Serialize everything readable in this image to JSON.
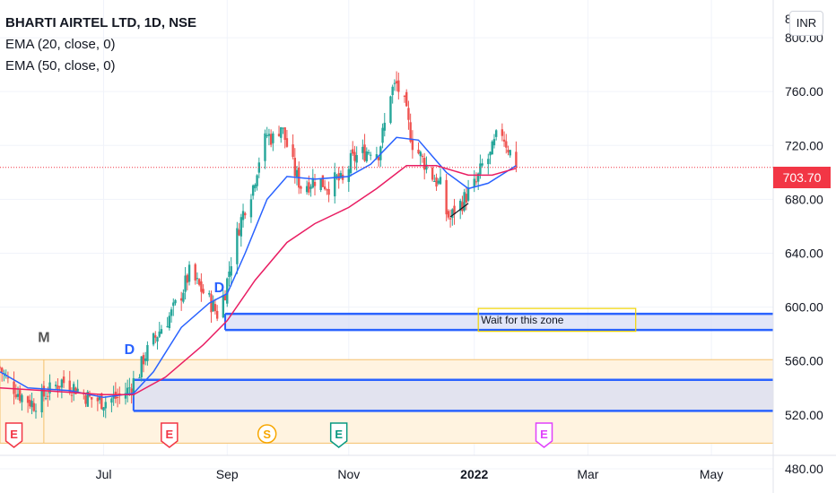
{
  "header": {
    "symbol_title": "BHARTI AIRTEL LTD, 1D, NSE",
    "indicator_1": "EMA (20, close, 0)",
    "indicator_2": "EMA (50, close, 0)",
    "currency_button": "INR"
  },
  "last_price_label": "703.70",
  "annotation_text": "Wait for this zone",
  "colors": {
    "up": "#26a69a",
    "down": "#ef5350",
    "ema20": "#2962ff",
    "ema50": "#e91e63",
    "zone_border": "#2962ff",
    "zone_fill": "#d6dcf5",
    "range_fill": "#fff3e0",
    "range_border": "#f5c16c",
    "callout_border": "#f2d500",
    "price_tag": "#f23645"
  },
  "markers": [
    {
      "label": "M",
      "color": "#555555"
    },
    {
      "label": "D",
      "color": "#2962ff"
    },
    {
      "label": "D",
      "color": "#2962ff"
    }
  ],
  "event_badges": [
    {
      "label": "E",
      "color": "#f23645",
      "date": "2021-05-17"
    },
    {
      "label": "E",
      "color": "#f23645",
      "date": "2021-08-03"
    },
    {
      "label": "S",
      "color": "#f7a600",
      "date": "2021-09-21"
    },
    {
      "label": "E",
      "color": "#089981",
      "date": "2021-10-27"
    },
    {
      "label": "E",
      "color": "#e040fb",
      "date": "2022-02-07"
    }
  ],
  "chart_data": {
    "type": "candlestick",
    "title": "BHARTI AIRTEL LTD, 1D, NSE",
    "x_type": "date",
    "x_range": [
      "2021-05-10",
      "2022-06-02"
    ],
    "x_ticks": [
      {
        "label": "Jul",
        "date": "2021-07-01"
      },
      {
        "label": "Sep",
        "date": "2021-09-01"
      },
      {
        "label": "Nov",
        "date": "2021-11-01"
      },
      {
        "label": "2022",
        "date": "2022-01-03",
        "bold": true
      },
      {
        "label": "Mar",
        "date": "2022-03-01"
      },
      {
        "label": "May",
        "date": "2022-05-02"
      }
    ],
    "y_range": [
      462,
      828
    ],
    "y_ticks": [
      "480.00",
      "520.00",
      "560.00",
      "600.00",
      "640.00",
      "680.00",
      "720.00",
      "760.00",
      "800.00"
    ],
    "y_top_partial_label": "8",
    "last_price": 703.7,
    "price_path": [
      [
        "2021-05-10",
        555
      ],
      [
        "2021-05-14",
        545
      ],
      [
        "2021-05-20",
        535
      ],
      [
        "2021-05-27",
        528
      ],
      [
        "2021-06-03",
        537
      ],
      [
        "2021-06-10",
        545
      ],
      [
        "2021-06-17",
        540
      ],
      [
        "2021-06-24",
        532
      ],
      [
        "2021-07-01",
        530
      ],
      [
        "2021-07-08",
        533
      ],
      [
        "2021-07-13",
        538
      ],
      [
        "2021-07-16",
        545
      ],
      [
        "2021-07-19",
        552
      ],
      [
        "2021-07-21",
        562
      ],
      [
        "2021-07-26",
        575
      ],
      [
        "2021-07-30",
        585
      ],
      [
        "2021-08-04",
        595
      ],
      [
        "2021-08-09",
        610
      ],
      [
        "2021-08-13",
        625
      ],
      [
        "2021-08-18",
        615
      ],
      [
        "2021-08-23",
        605
      ],
      [
        "2021-08-27",
        595
      ],
      [
        "2021-08-31",
        612
      ],
      [
        "2021-09-03",
        635
      ],
      [
        "2021-09-07",
        660
      ],
      [
        "2021-09-10",
        675
      ],
      [
        "2021-09-14",
        690
      ],
      [
        "2021-09-17",
        710
      ],
      [
        "2021-09-21",
        728
      ],
      [
        "2021-09-24",
        725
      ],
      [
        "2021-09-28",
        735
      ],
      [
        "2021-10-01",
        720
      ],
      [
        "2021-10-05",
        700
      ],
      [
        "2021-10-08",
        690
      ],
      [
        "2021-10-12",
        692
      ],
      [
        "2021-10-15",
        695
      ],
      [
        "2021-10-19",
        692
      ],
      [
        "2021-10-22",
        690
      ],
      [
        "2021-10-26",
        695
      ],
      [
        "2021-10-29",
        692
      ],
      [
        "2021-11-02",
        708
      ],
      [
        "2021-11-05",
        712
      ],
      [
        "2021-11-09",
        715
      ],
      [
        "2021-11-12",
        718
      ],
      [
        "2021-11-16",
        715
      ],
      [
        "2021-11-19",
        735
      ],
      [
        "2021-11-22",
        760
      ],
      [
        "2021-11-25",
        765
      ],
      [
        "2021-11-29",
        750
      ],
      [
        "2021-12-01",
        735
      ],
      [
        "2021-12-03",
        722
      ],
      [
        "2021-12-07",
        712
      ],
      [
        "2021-12-10",
        705
      ],
      [
        "2021-12-14",
        695
      ],
      [
        "2021-12-17",
        690
      ],
      [
        "2021-12-20",
        670
      ],
      [
        "2021-12-22",
        665
      ],
      [
        "2021-12-24",
        672
      ],
      [
        "2021-12-28",
        678
      ],
      [
        "2021-12-31",
        685
      ],
      [
        "2022-01-04",
        692
      ],
      [
        "2022-01-07",
        705
      ],
      [
        "2022-01-11",
        712
      ],
      [
        "2022-01-14",
        725
      ],
      [
        "2022-01-17",
        730
      ],
      [
        "2022-01-19",
        722
      ],
      [
        "2022-01-21",
        715
      ],
      [
        "2022-01-24",
        703.7
      ]
    ],
    "candle_start": "2021-05-10",
    "candle_end": "2022-01-24",
    "series": [
      {
        "name": "EMA (20, close, 0)",
        "color": "#2962ff",
        "points": [
          [
            "2021-05-10",
            552
          ],
          [
            "2021-05-24",
            540
          ],
          [
            "2021-06-14",
            538
          ],
          [
            "2021-07-01",
            533
          ],
          [
            "2021-07-16",
            536
          ],
          [
            "2021-07-26",
            552
          ],
          [
            "2021-08-09",
            585
          ],
          [
            "2021-08-23",
            603
          ],
          [
            "2021-09-01",
            610
          ],
          [
            "2021-09-10",
            640
          ],
          [
            "2021-09-21",
            680
          ],
          [
            "2021-10-01",
            697
          ],
          [
            "2021-10-15",
            695
          ],
          [
            "2021-11-01",
            697
          ],
          [
            "2021-11-12",
            706
          ],
          [
            "2021-11-25",
            726
          ],
          [
            "2021-12-06",
            724
          ],
          [
            "2021-12-20",
            700
          ],
          [
            "2021-12-31",
            688
          ],
          [
            "2022-01-10",
            692
          ],
          [
            "2022-01-24",
            705
          ]
        ]
      },
      {
        "name": "EMA (50, close, 0)",
        "color": "#e91e63",
        "points": [
          [
            "2021-05-10",
            540
          ],
          [
            "2021-06-01",
            538
          ],
          [
            "2021-07-01",
            535
          ],
          [
            "2021-07-16",
            535
          ],
          [
            "2021-08-01",
            548
          ],
          [
            "2021-08-20",
            572
          ],
          [
            "2021-09-01",
            590
          ],
          [
            "2021-09-15",
            620
          ],
          [
            "2021-10-01",
            648
          ],
          [
            "2021-10-15",
            662
          ],
          [
            "2021-11-01",
            674
          ],
          [
            "2021-11-15",
            688
          ],
          [
            "2021-11-30",
            705
          ],
          [
            "2021-12-15",
            705
          ],
          [
            "2021-12-31",
            698
          ],
          [
            "2022-01-12",
            698
          ],
          [
            "2022-01-24",
            703
          ]
        ]
      }
    ],
    "zones": [
      {
        "from": "2021-08-31",
        "to": "2022-06-02",
        "low": 583,
        "high": 595,
        "kind": "supply-demand"
      },
      {
        "from": "2021-07-16",
        "to": "2022-06-02",
        "low": 523,
        "high": 546,
        "kind": "supply-demand"
      }
    ],
    "range_box": {
      "from": "2021-05-10",
      "to": "2022-06-02",
      "low": 499,
      "high": 561
    },
    "range_box_divider": "2021-06-01",
    "callout": {
      "from": "2022-01-05",
      "to": "2022-03-25",
      "low": 582,
      "high": 599
    },
    "marker_positions": [
      {
        "date": "2021-06-01",
        "price": 574
      },
      {
        "date": "2021-07-14",
        "price": 565
      },
      {
        "date": "2021-08-28",
        "price": 611
      }
    ],
    "trend_line": [
      [
        "2021-12-22",
        667
      ],
      [
        "2021-12-31",
        677
      ]
    ]
  }
}
